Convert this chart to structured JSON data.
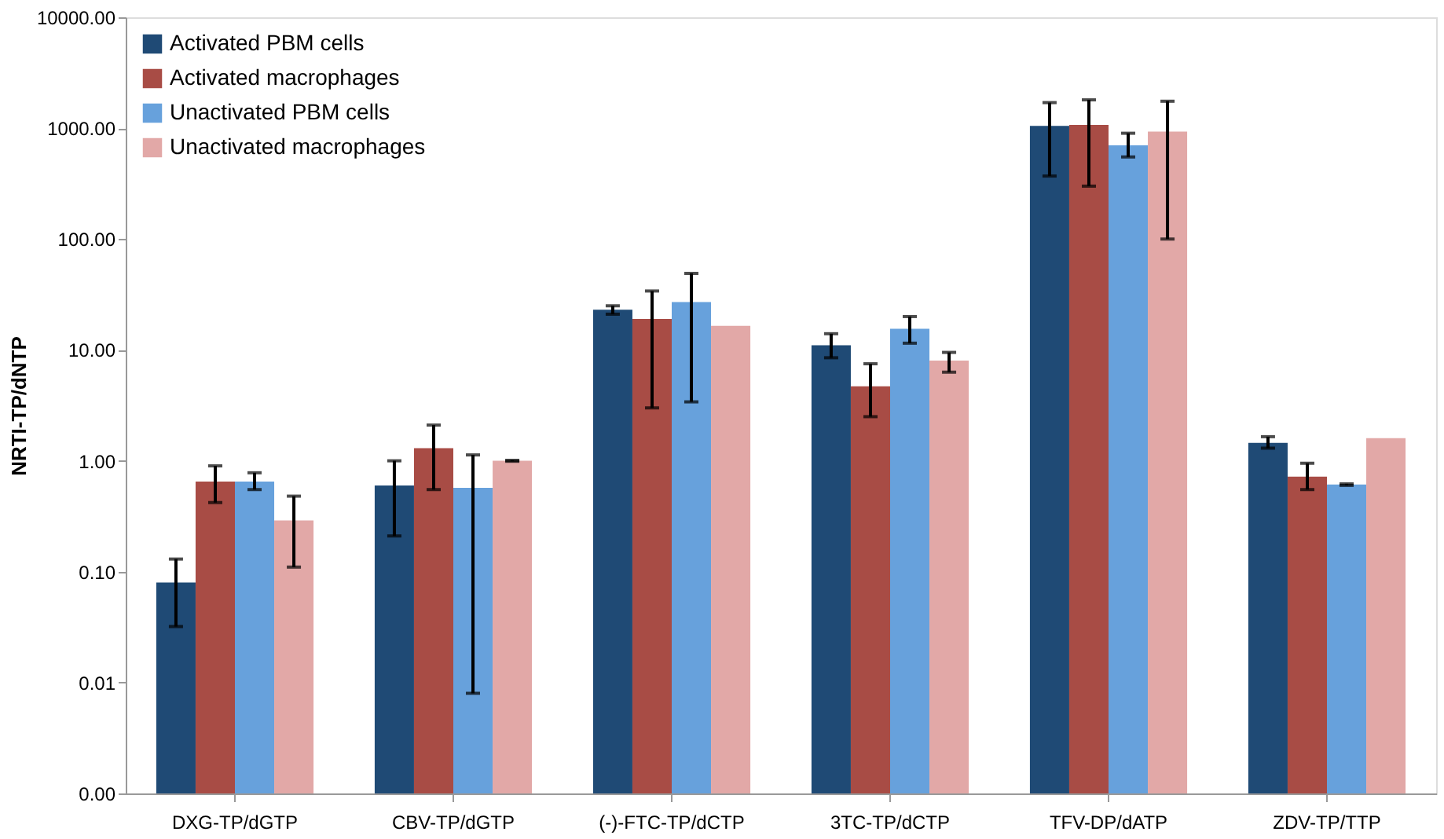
{
  "chart_data": {
    "type": "bar",
    "ylabel": "NRTI-TP/dNTP",
    "log": true,
    "categories": [
      "DXG-TP/dGTP",
      "CBV-TP/dGTP",
      "(-)-FTC-TP/dCTP",
      "3TC-TP/dCTP",
      "TFV-DP/dATP",
      "ZDV-TP/TTP"
    ],
    "ylim": [
      0.001,
      10000
    ],
    "yticks": [
      {
        "value": 0.001,
        "label": "0.00"
      },
      {
        "value": 0.01,
        "label": "0.01"
      },
      {
        "value": 0.1,
        "label": "0.10"
      },
      {
        "value": 1,
        "label": "1.00"
      },
      {
        "value": 10,
        "label": "10.00"
      },
      {
        "value": 100,
        "label": "100.00"
      },
      {
        "value": 1000,
        "label": "1000.00"
      },
      {
        "value": 10000,
        "label": "10000.00"
      }
    ],
    "grid": false,
    "legend": "top left",
    "series": [
      {
        "name": "Activated PBM cells",
        "color": "#1f4a75",
        "values": [
          0.08,
          0.6,
          23,
          11,
          1050,
          1.45
        ],
        "errors": [
          [
            0.032,
            0.13
          ],
          [
            0.21,
            1.0
          ],
          [
            21,
            25
          ],
          [
            8.5,
            14
          ],
          [
            370,
            1700
          ],
          [
            1.3,
            1.65
          ]
        ]
      },
      {
        "name": "Activated macrophages",
        "color": "#a84c45",
        "values": [
          0.65,
          1.3,
          19,
          4.7,
          1070,
          0.72
        ],
        "errors": [
          [
            0.42,
            0.9
          ],
          [
            0.55,
            2.1
          ],
          [
            3,
            34
          ],
          [
            2.5,
            7.5
          ],
          [
            300,
            1800
          ],
          [
            0.55,
            0.95
          ]
        ]
      },
      {
        "name": "Unactivated PBM cells",
        "color": "#67a1dc",
        "values": [
          0.65,
          0.57,
          27,
          15.5,
          700,
          0.61
        ],
        "errors": [
          [
            0.55,
            0.78
          ],
          [
            0.008,
            1.13
          ],
          [
            3.4,
            49
          ],
          [
            11.5,
            20
          ],
          [
            550,
            900
          ],
          [
            0.6,
            0.62
          ]
        ]
      },
      {
        "name": "Unactivated macrophages",
        "color": "#e2a8a7",
        "values": [
          0.29,
          1.0,
          16.5,
          8,
          930,
          1.6
        ],
        "errors": [
          [
            0.11,
            0.48
          ],
          [
            0.99,
            1.01
          ],
          null,
          [
            6.3,
            9.5
          ],
          [
            100,
            1750
          ],
          null
        ]
      }
    ]
  }
}
